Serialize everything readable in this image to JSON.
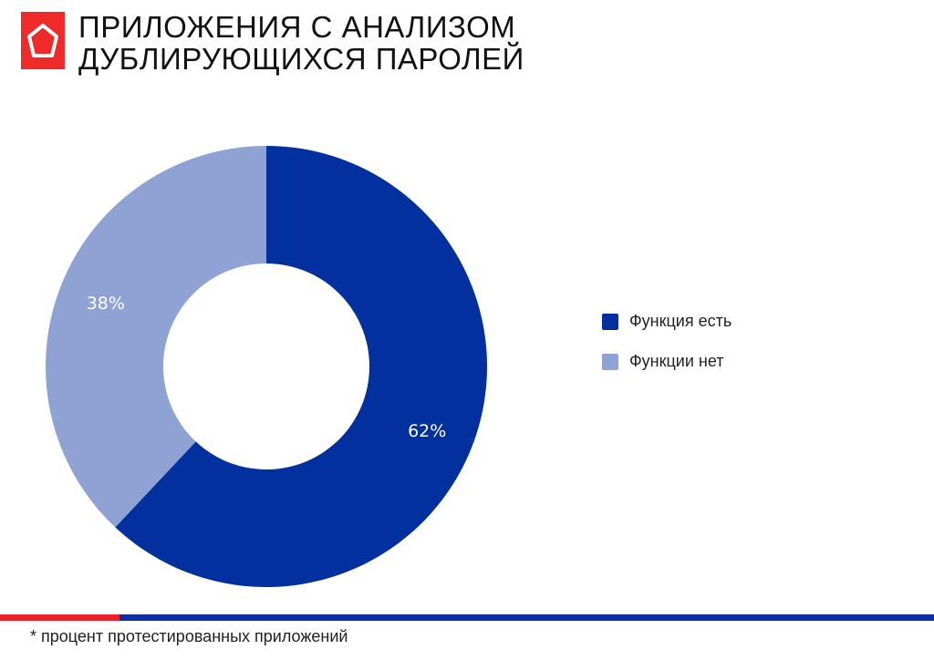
{
  "header": {
    "title_line1": "ПРИЛОЖЕНИЯ С АНАЛИЗОМ",
    "title_line2": "ДУБЛИРУЮЩИХСЯ ПАРОЛЕЙ",
    "logo_icon": "pentagon-icon",
    "logo_color": "#ee2a2a"
  },
  "chart_data": {
    "type": "pie",
    "donut": true,
    "title": "ПРИЛОЖЕНИЯ С АНАЛИЗОМ ДУБЛИРУЮЩИХСЯ ПАРОЛЕЙ",
    "categories": [
      "Функция есть",
      "Функции нет"
    ],
    "values": [
      62,
      38
    ],
    "labels": [
      "62%",
      "38%"
    ],
    "colors": [
      "#02309e",
      "#8ea2d4"
    ],
    "legend_position": "right"
  },
  "legend": {
    "items": [
      {
        "label": "Функция есть",
        "color": "#02309e"
      },
      {
        "label": "Функции нет",
        "color": "#8ea2d4"
      }
    ]
  },
  "footer": {
    "note": "* процент протестированных приложений",
    "bar_colors": [
      "#e8222a",
      "#0f2fa0"
    ]
  }
}
